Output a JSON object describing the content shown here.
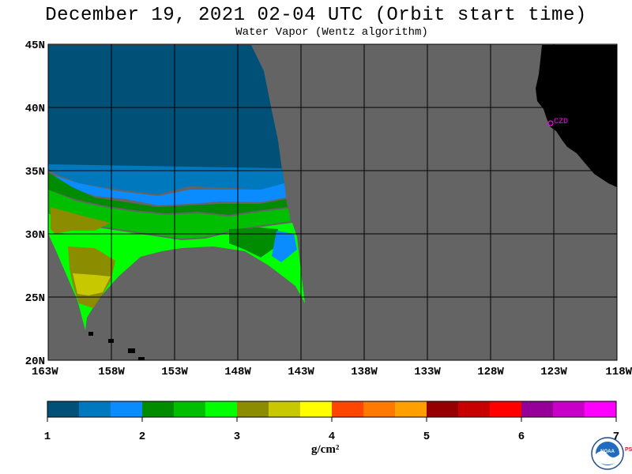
{
  "title": "December 19, 2021  02-04 UTC  (Orbit start time)",
  "subtitle": "Water Vapor (Wentz algorithm)",
  "map": {
    "lat_labels": [
      "45N",
      "40N",
      "35N",
      "30N",
      "25N",
      "20N"
    ],
    "lon_labels": [
      "163W",
      "158W",
      "153W",
      "148W",
      "143W",
      "138W",
      "133W",
      "128W",
      "123W",
      "118W"
    ],
    "station_label": "CZD",
    "colors": {
      "no_data": "#646464",
      "land": "#000000",
      "grid": "#000000",
      "station": "#ff00ff"
    }
  },
  "colorbar": {
    "units": "g/cm²",
    "tick_labels": [
      "1",
      "2",
      "3",
      "4",
      "5",
      "6",
      "7"
    ],
    "colors": [
      "#005078",
      "#0078be",
      "#0a8cff",
      "#008c00",
      "#00be00",
      "#00ff00",
      "#8c8c00",
      "#c8c800",
      "#ffff00",
      "#ff4600",
      "#ff7800",
      "#ffa000",
      "#960000",
      "#c80000",
      "#ff0000",
      "#960096",
      "#c800c8",
      "#ff00ff"
    ]
  },
  "logo": {
    "text": "NOAA",
    "side_text": "PSL"
  }
}
